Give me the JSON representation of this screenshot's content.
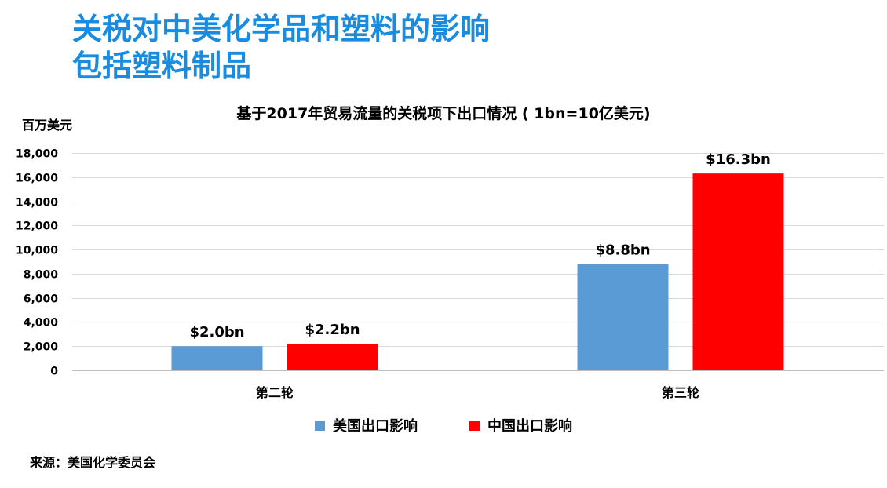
{
  "headline": {
    "line1": "关税对中美化学品和塑料的影响",
    "line2": "包括塑料制品"
  },
  "colors": {
    "headline": "#1a8ce0",
    "us_series": "#5b9bd5",
    "china_series": "#ff0000",
    "grid": "#d9d9d9"
  },
  "source": "来源：美国化学委员会",
  "chart_data": {
    "type": "bar",
    "title": "基于2017年贸易流量的关税项下出口情况 ( 1bn=10亿美元)",
    "ylabel": "百万美元",
    "xlabel": "",
    "categories": [
      "第二轮",
      "第三轮"
    ],
    "series": [
      {
        "name": "美国出口影响",
        "values": [
          2000,
          8800
        ],
        "data_labels": [
          "$2.0bn",
          "$8.8bn"
        ]
      },
      {
        "name": "中国出口影响",
        "values": [
          2200,
          16300
        ],
        "data_labels": [
          "$2.2bn",
          "$16.3bn"
        ]
      }
    ],
    "ylim": [
      0,
      18000
    ],
    "yticks": [
      0,
      2000,
      4000,
      6000,
      8000,
      10000,
      12000,
      14000,
      16000,
      18000
    ],
    "ytick_labels": [
      "0",
      "2,000",
      "4,000",
      "6,000",
      "8,000",
      "10,000",
      "12,000",
      "14,000",
      "16,000",
      "18,000"
    ],
    "grid": true,
    "legend_position": "bottom"
  }
}
